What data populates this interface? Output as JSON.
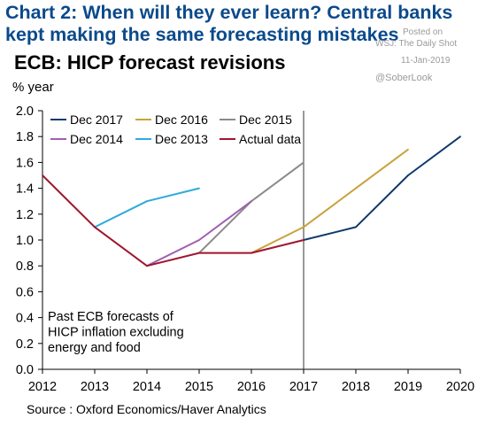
{
  "header": {
    "title": "Chart 2: When will they ever learn? Central banks kept making the same forecasting mistakes"
  },
  "watermark": {
    "line1": "Posted on",
    "line2": "WSJ: The Daily Shot",
    "line3": "11-Jan-2019",
    "line4": "@SoberLook"
  },
  "chart_data": {
    "type": "line",
    "title": "ECB: HICP forecast revisions",
    "ylabel": "% year",
    "xlabel": "",
    "x_ticks": [
      2012,
      2013,
      2014,
      2015,
      2016,
      2017,
      2018,
      2019,
      2020
    ],
    "y_ticks": [
      "0.0",
      "0.2",
      "0.4",
      "0.6",
      "0.8",
      "1.0",
      "1.2",
      "1.4",
      "1.6",
      "1.8",
      "2.0"
    ],
    "xlim": [
      2012,
      2020
    ],
    "ylim": [
      0,
      2.0
    ],
    "grid": false,
    "legend_position": "top",
    "vertical_marker_x": 2017,
    "series": [
      {
        "name": "Dec 2017",
        "color": "#0f3a6e",
        "points": [
          [
            2017,
            1.0
          ],
          [
            2018,
            1.1
          ],
          [
            2019,
            1.5
          ],
          [
            2020,
            1.8
          ]
        ]
      },
      {
        "name": "Dec 2016",
        "color": "#c9a23a",
        "points": [
          [
            2016,
            0.9
          ],
          [
            2017,
            1.1
          ],
          [
            2018,
            1.4
          ],
          [
            2019,
            1.7
          ]
        ]
      },
      {
        "name": "Dec 2015",
        "color": "#8a8a8a",
        "points": [
          [
            2015,
            0.9
          ],
          [
            2016,
            1.3
          ],
          [
            2017,
            1.6
          ]
        ]
      },
      {
        "name": "Dec 2014",
        "color": "#a15fb0",
        "points": [
          [
            2014,
            0.8
          ],
          [
            2015,
            1.0
          ],
          [
            2016,
            1.3
          ]
        ]
      },
      {
        "name": "Dec 2013",
        "color": "#2eaadc",
        "points": [
          [
            2013,
            1.1
          ],
          [
            2014,
            1.3
          ],
          [
            2015,
            1.4
          ]
        ]
      },
      {
        "name": "Actual data",
        "color": "#a0152f",
        "points": [
          [
            2012,
            1.5
          ],
          [
            2013,
            1.1
          ],
          [
            2014,
            0.8
          ],
          [
            2015,
            0.9
          ],
          [
            2016,
            0.9
          ],
          [
            2017,
            1.0
          ]
        ]
      }
    ],
    "annotation": [
      "Past ECB forecasts of",
      "HICP inflation excluding",
      "energy and food"
    ]
  },
  "source": "Source : Oxford Economics/Haver Analytics"
}
